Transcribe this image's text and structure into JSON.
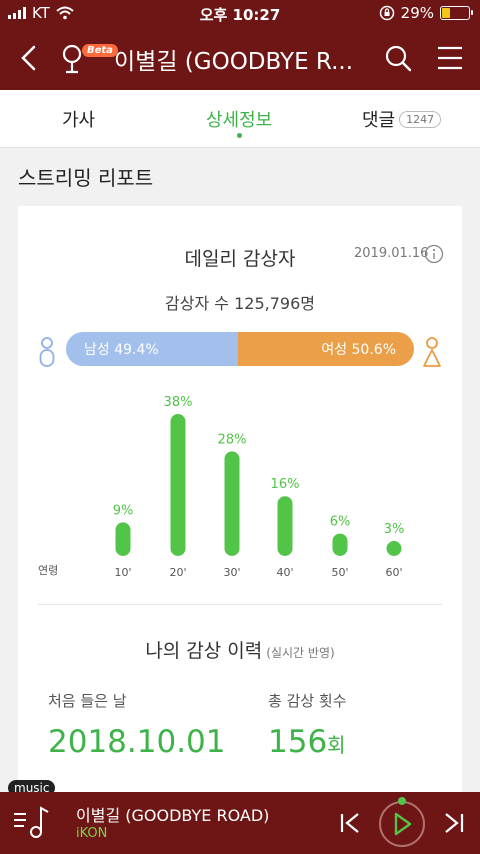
{
  "status_bar": {
    "carrier": "KT",
    "time": "오후 10:27",
    "battery": "29%",
    "battery_level": 0.29
  },
  "navbar": {
    "beta": "Beta",
    "title": "이별길 (GOODBYE R..."
  },
  "tabs": [
    {
      "label": "가사"
    },
    {
      "label": "상세정보"
    },
    {
      "label": "댓글",
      "badge": "1247"
    }
  ],
  "section": {
    "title": "스트리밍 리포트"
  },
  "daily": {
    "title": "데일리 감상자",
    "date": "2019.01.16",
    "listeners": "감상자 수 125,796명",
    "male": {
      "label": "남성 49.4%",
      "value": 49.4
    },
    "female": {
      "label": "여성 50.6%",
      "value": 50.6
    },
    "age_label": "연령"
  },
  "chart_data": {
    "type": "bar",
    "categories": [
      "10'",
      "20'",
      "30'",
      "40'",
      "50'",
      "60'"
    ],
    "values": [
      9,
      38,
      28,
      16,
      6,
      3
    ],
    "value_labels": [
      "9%",
      "38%",
      "28%",
      "16%",
      "6%",
      "3%"
    ],
    "xlabel": "연령",
    "color": "#52c447"
  },
  "history": {
    "title": "나의 감상 이력",
    "subtitle": "(실시간 반영)",
    "first_label": "처음 들은 날",
    "first_value": "2018.10.01",
    "count_label": "총 감상 횟수",
    "count_value": "156",
    "count_unit": "회"
  },
  "player": {
    "tag": "music",
    "song": "이별길 (GOODBYE ROAD)",
    "artist": "iKON"
  },
  "colors": {
    "brand": "#6e1515",
    "accent": "#3fb34a",
    "male": "#a3bfec",
    "female": "#eb9f49"
  }
}
